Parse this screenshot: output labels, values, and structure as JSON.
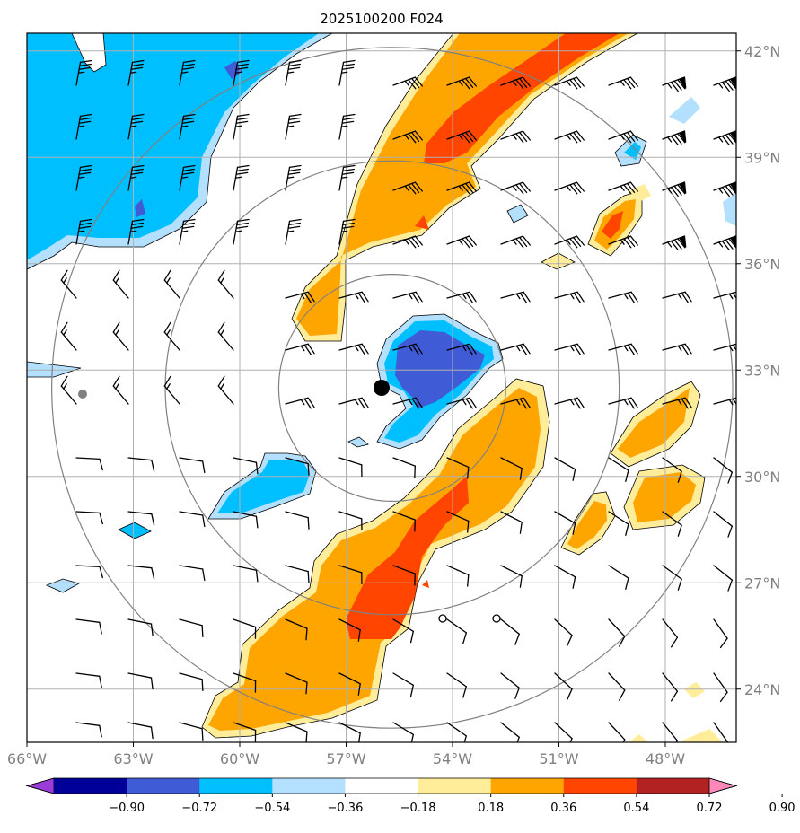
{
  "title": "2025100200 F024",
  "lat_labels": [
    "42°N",
    "39°N",
    "36°N",
    "33°N",
    "30°N",
    "27°N",
    "24°N"
  ],
  "lon_labels": [
    "66°W",
    "63°W",
    "60°W",
    "57°W",
    "54°W",
    "51°W",
    "48°W"
  ],
  "colorbar": {
    "tick_labels": [
      "−0.90",
      "−0.72",
      "−0.54",
      "−0.36",
      "−0.18",
      "0.18",
      "0.36",
      "0.54",
      "0.72",
      "0.90"
    ],
    "colors": [
      "#9b3bd9",
      "#000099",
      "#3f5bd6",
      "#00bfff",
      "#b3e0ff",
      "#ffffff",
      "#ffed9a",
      "#ffa500",
      "#ff4500",
      "#b22222",
      "#ff88bb"
    ]
  },
  "map": {
    "lat_range": [
      22.5,
      42.5
    ],
    "lon_range": [
      -66.0,
      -46.0
    ],
    "center_marker": {
      "lat": 32.5,
      "lon": -55.7
    },
    "range_rings_deg": [
      3.2,
      6.4,
      9.6
    ]
  },
  "colors": {
    "blue": "#00bfff",
    "light_blue": "#b3e0ff",
    "dark_blue": "#3f5bd6",
    "yellow": "#ffed9a",
    "orange": "#ffa500",
    "red_orange": "#ff4500",
    "grid": "#b0b0b0",
    "ring": "#808080"
  }
}
